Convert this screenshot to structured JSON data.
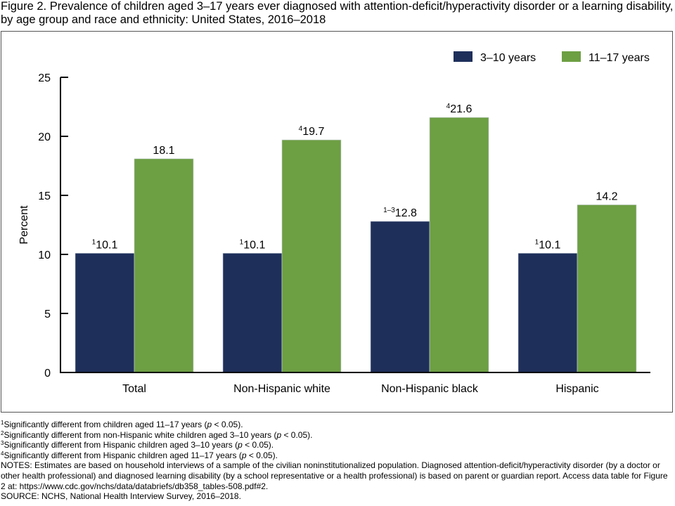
{
  "figure": {
    "title": "Figure 2. Prevalence of children aged 3–17 years ever diagnosed with attention-deficit/hyperactivity disorder or a learning disability, by age group and race and ethnicity: United States, 2016–2018"
  },
  "chart_data": {
    "type": "bar",
    "title": "Figure 2. Prevalence of children aged 3–17 years ever diagnosed with attention-deficit/hyperactivity disorder or a learning disability, by age group and race and ethnicity: United States, 2016–2018",
    "xlabel": "",
    "ylabel": "Percent",
    "ylim": [
      0,
      25
    ],
    "yticks": [
      0,
      5,
      10,
      15,
      20,
      25
    ],
    "grid": false,
    "legend_position": "top-right",
    "categories": [
      "Total",
      "Non-Hispanic white",
      "Non-Hispanic black",
      "Hispanic"
    ],
    "series": [
      {
        "name": "3–10 years",
        "color": "#1e2f5a",
        "values": [
          10.1,
          10.1,
          12.8,
          10.1
        ],
        "labels": [
          "10.1",
          "10.1",
          "12.8",
          "10.1"
        ],
        "label_superscripts": [
          "1",
          "1",
          "1–3",
          "1"
        ]
      },
      {
        "name": "11–17 years",
        "color": "#6d9f43",
        "values": [
          18.1,
          19.7,
          21.6,
          14.2
        ],
        "labels": [
          "18.1",
          "19.7",
          "21.6",
          "14.2"
        ],
        "label_superscripts": [
          "",
          "4",
          "4",
          ""
        ]
      }
    ]
  },
  "footnotes": [
    {
      "mark": "1",
      "text": "Significantly different from children aged 11–17 years (",
      "italic": "p",
      "tail": " < 0.05)."
    },
    {
      "mark": "2",
      "text": "Significantly different from non-Hispanic white children aged 3–10 years (",
      "italic": "p",
      "tail": " < 0.05)."
    },
    {
      "mark": "3",
      "text": "Significantly different from Hispanic children aged 3–10 years (",
      "italic": "p",
      "tail": " < 0.05)."
    },
    {
      "mark": "4",
      "text": "Significantly different from Hispanic children aged 11–17 years (",
      "italic": "p",
      "tail": " < 0.05)."
    }
  ],
  "notes": "NOTES: Estimates are based on household interviews of a sample of the civilian noninstitutionalized population. Diagnosed attention-deficit/hyperactivity disorder (by a doctor or other health professional) and diagnosed learning disability (by a school representative or a health professional) is based on parent or guardian report. Access data table for Figure 2 at: https://www.cdc.gov/nchs/data/databriefs/db358_tables-508.pdf#2.",
  "source": "SOURCE: NCHS, National Health Interview Survey, 2016–2018."
}
